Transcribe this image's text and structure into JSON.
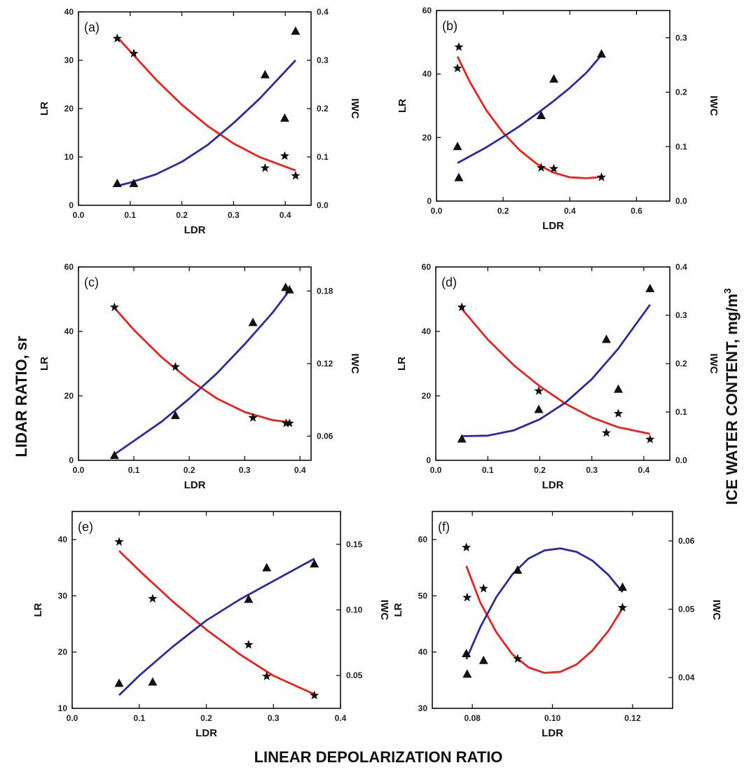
{
  "figure": {
    "left_title": "LIDAR RATIO, sr",
    "right_title": "ICE WATER CONTENT, mg/m",
    "right_title_sup": "3",
    "bottom_title": "LINEAR DEPOLARIZATION RATIO"
  },
  "chart_data": [
    {
      "type": "scatter",
      "panel": "(a)",
      "xlabel": "LDR",
      "ylabel": "LR",
      "y2label": "IWC",
      "xlim": [
        0.0,
        0.45
      ],
      "ylim": [
        0,
        40
      ],
      "y2lim": [
        0.0,
        0.4
      ],
      "xticks": [
        "0.0",
        "0.1",
        "0.2",
        "0.3",
        "0.4"
      ],
      "yticks": [
        "0",
        "10",
        "20",
        "30",
        "40"
      ],
      "y2ticks": [
        "0.0",
        "0.1",
        "0.2",
        "0.3",
        "0.4"
      ],
      "lr_points": {
        "x": [
          0.075,
          0.107,
          0.361,
          0.399,
          0.42
        ],
        "y": [
          34.5,
          31.4,
          7.7,
          10.2,
          6.1
        ]
      },
      "lr_fit": {
        "x": [
          0.075,
          0.15,
          0.2,
          0.25,
          0.3,
          0.35,
          0.42
        ],
        "y": [
          34.8,
          26.0,
          20.8,
          16.4,
          12.8,
          10.0,
          7.2
        ]
      },
      "iwc_points": {
        "x": [
          0.075,
          0.107,
          0.361,
          0.399,
          0.42
        ],
        "y": [
          0.045,
          0.045,
          0.27,
          0.18,
          0.36
        ]
      },
      "iwc_fit": {
        "x": [
          0.075,
          0.1,
          0.15,
          0.2,
          0.25,
          0.3,
          0.35,
          0.42
        ],
        "y": [
          0.04,
          0.047,
          0.064,
          0.09,
          0.125,
          0.17,
          0.22,
          0.3
        ]
      }
    },
    {
      "type": "scatter",
      "panel": "(b)",
      "xlabel": "LDR",
      "ylabel": "LR",
      "y2label": "IWC",
      "xlim": [
        0.0,
        0.7
      ],
      "ylim": [
        0,
        60
      ],
      "y2lim": [
        0.0,
        0.35
      ],
      "xticks": [
        "0.0",
        "0.2",
        "0.4",
        "0.6"
      ],
      "yticks": [
        "0",
        "20",
        "40",
        "60"
      ],
      "y2ticks": [
        "0.0",
        "0.1",
        "0.2",
        "0.3"
      ],
      "lr_points": {
        "x": [
          0.063,
          0.067,
          0.314,
          0.352,
          0.495
        ],
        "y": [
          41.8,
          48.5,
          10.5,
          10.2,
          7.5
        ]
      },
      "lr_fit": {
        "x": [
          0.063,
          0.1,
          0.15,
          0.2,
          0.25,
          0.3,
          0.35,
          0.4,
          0.45,
          0.495
        ],
        "y": [
          45.5,
          37.5,
          28.5,
          21.5,
          16.0,
          11.8,
          9.0,
          7.5,
          7.2,
          7.6
        ]
      },
      "iwc_points": {
        "x": [
          0.063,
          0.067,
          0.314,
          0.352,
          0.495
        ],
        "y": [
          0.1,
          0.043,
          0.157,
          0.224,
          0.27
        ]
      },
      "iwc_fit": {
        "x": [
          0.063,
          0.15,
          0.2,
          0.25,
          0.3,
          0.35,
          0.4,
          0.45,
          0.495
        ],
        "y": [
          0.07,
          0.099,
          0.118,
          0.138,
          0.16,
          0.183,
          0.208,
          0.236,
          0.268
        ]
      }
    },
    {
      "type": "scatter",
      "panel": "(c)",
      "xlabel": "LDR",
      "ylabel": "LR",
      "y2label": "IWC",
      "xlim": [
        0.0,
        0.42
      ],
      "ylim": [
        0,
        60
      ],
      "y2lim": [
        0.04,
        0.2
      ],
      "xticks": [
        "0.0",
        "0.1",
        "0.2",
        "0.3",
        "0.4"
      ],
      "yticks": [
        "0",
        "20",
        "40",
        "60"
      ],
      "y2ticks": [
        "0.06",
        "0.12",
        "0.18"
      ],
      "lr_points": {
        "x": [
          0.065,
          0.175,
          0.315,
          0.375,
          0.381
        ],
        "y": [
          47.5,
          29.0,
          13.2,
          11.5,
          11.5
        ]
      },
      "lr_fit": {
        "x": [
          0.065,
          0.1,
          0.15,
          0.2,
          0.25,
          0.3,
          0.35,
          0.381
        ],
        "y": [
          47.3,
          40.5,
          32.0,
          25.0,
          19.2,
          15.0,
          12.5,
          11.8
        ]
      },
      "iwc_points": {
        "x": [
          0.065,
          0.175,
          0.315,
          0.374,
          0.381
        ],
        "y": [
          0.044,
          0.077,
          0.154,
          0.183,
          0.181
        ]
      },
      "iwc_fit": {
        "x": [
          0.065,
          0.1,
          0.15,
          0.2,
          0.25,
          0.3,
          0.35,
          0.38
        ],
        "y": [
          0.045,
          0.056,
          0.072,
          0.091,
          0.112,
          0.136,
          0.162,
          0.18
        ]
      }
    },
    {
      "type": "scatter",
      "panel": "(d)",
      "xlabel": "LDR",
      "ylabel": "LR",
      "y2label": "IWC",
      "xlim": [
        0.0,
        0.45
      ],
      "ylim": [
        0,
        60
      ],
      "y2lim": [
        0.0,
        0.4
      ],
      "xticks": [
        "0.0",
        "0.1",
        "0.2",
        "0.3",
        "0.4"
      ],
      "yticks": [
        "0",
        "20",
        "40",
        "60"
      ],
      "y2ticks": [
        "0.0",
        "0.1",
        "0.2",
        "0.3",
        "0.4"
      ],
      "lr_points": {
        "x": [
          0.05,
          0.198,
          0.328,
          0.351,
          0.412
        ],
        "y": [
          47.5,
          21.5,
          8.5,
          14.5,
          6.5
        ]
      },
      "lr_fit": {
        "x": [
          0.05,
          0.1,
          0.15,
          0.2,
          0.25,
          0.3,
          0.35,
          0.412
        ],
        "y": [
          47.0,
          37.5,
          29.5,
          23.0,
          17.5,
          13.3,
          10.3,
          8.2
        ]
      },
      "iwc_points": {
        "x": [
          0.05,
          0.198,
          0.328,
          0.351,
          0.412
        ],
        "y": [
          0.044,
          0.105,
          0.25,
          0.147,
          0.355
        ]
      },
      "iwc_fit": {
        "x": [
          0.05,
          0.1,
          0.15,
          0.2,
          0.25,
          0.3,
          0.35,
          0.412
        ],
        "y": [
          0.05,
          0.051,
          0.062,
          0.085,
          0.12,
          0.168,
          0.23,
          0.322
        ]
      }
    },
    {
      "type": "scatter",
      "panel": "(e)",
      "xlabel": "LDR",
      "ylabel": "LR",
      "y2label": "IWC",
      "xlim": [
        0.0,
        0.4
      ],
      "ylim": [
        10,
        45
      ],
      "y2lim": [
        0.025,
        0.175
      ],
      "xticks": [
        "0.0",
        "0.1",
        "0.2",
        "0.3",
        "0.4"
      ],
      "yticks": [
        "10",
        "20",
        "30",
        "40"
      ],
      "y2ticks": [
        "0.05",
        "0.10",
        "0.15"
      ],
      "lr_points": {
        "x": [
          0.07,
          0.12,
          0.263,
          0.29,
          0.361
        ],
        "y": [
          39.6,
          29.5,
          21.3,
          15.7,
          12.3
        ]
      },
      "lr_fit": {
        "x": [
          0.07,
          0.1,
          0.15,
          0.2,
          0.25,
          0.3,
          0.361
        ],
        "y": [
          38.0,
          34.5,
          29.0,
          24.0,
          19.6,
          15.8,
          12.5
        ]
      },
      "iwc_points": {
        "x": [
          0.07,
          0.12,
          0.263,
          0.29,
          0.361
        ],
        "y": [
          0.044,
          0.045,
          0.108,
          0.132,
          0.135
        ]
      },
      "iwc_fit": {
        "x": [
          0.07,
          0.1,
          0.15,
          0.2,
          0.25,
          0.3,
          0.361
        ],
        "y": [
          0.035,
          0.05,
          0.072,
          0.092,
          0.108,
          0.122,
          0.139
        ]
      }
    },
    {
      "type": "scatter",
      "panel": "(f)",
      "xlabel": "LDR",
      "ylabel": "LR",
      "y2label": "IWC",
      "xlim": [
        0.07,
        0.13
      ],
      "ylim": [
        30,
        65
      ],
      "y2lim": [
        0.0355,
        0.0643
      ],
      "xticks": [
        "0.08",
        "0.10",
        "0.12"
      ],
      "yticks": [
        "30",
        "40",
        "50",
        "60"
      ],
      "y2ticks": [
        "0.04",
        "0.05",
        "0.06"
      ],
      "lr_points": {
        "x": [
          0.0785,
          0.0787,
          0.0828,
          0.0913,
          0.1175
        ],
        "y": [
          58.6,
          49.7,
          51.3,
          38.8,
          47.9
        ]
      },
      "lr_fit": {
        "x": [
          0.0785,
          0.082,
          0.086,
          0.09,
          0.094,
          0.098,
          0.102,
          0.106,
          0.11,
          0.114,
          0.1175
        ],
        "y": [
          55.3,
          48.8,
          43.5,
          39.6,
          37.3,
          36.3,
          36.5,
          37.8,
          40.3,
          43.8,
          47.8
        ]
      },
      "iwc_points": {
        "x": [
          0.0785,
          0.0787,
          0.0828,
          0.0913,
          0.1175
        ],
        "y": [
          0.0435,
          0.0405,
          0.0425,
          0.0557,
          0.0532
        ]
      },
      "iwc_fit": {
        "x": [
          0.0785,
          0.082,
          0.086,
          0.09,
          0.094,
          0.098,
          0.102,
          0.106,
          0.11,
          0.114,
          0.1175
        ],
        "y": [
          0.0427,
          0.0474,
          0.0518,
          0.0551,
          0.0574,
          0.0586,
          0.0589,
          0.0584,
          0.0571,
          0.055,
          0.0525
        ]
      }
    }
  ]
}
